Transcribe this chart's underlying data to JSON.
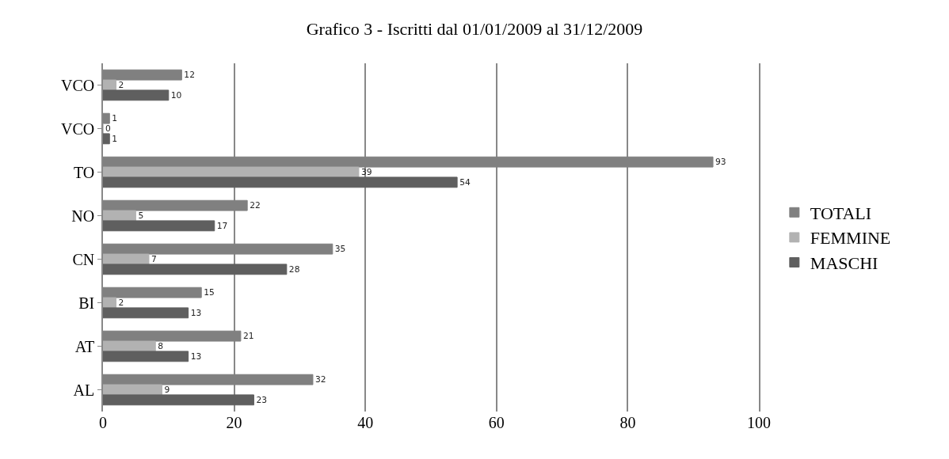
{
  "chart_data": {
    "type": "bar",
    "orientation": "horizontal",
    "title": "Grafico 3 - Iscritti dal 01/01/2009 al 31/12/2009",
    "categories": [
      "VCO",
      "VCO",
      "TO",
      "NO",
      "CN",
      "BI",
      "AT",
      "AL"
    ],
    "series": [
      {
        "name": "TOTALI",
        "color": "#808080",
        "values": [
          12,
          1,
          93,
          22,
          35,
          15,
          21,
          32
        ]
      },
      {
        "name": "FEMMINE",
        "color": "#b2b2b2",
        "values": [
          2,
          0,
          39,
          5,
          7,
          2,
          8,
          9
        ]
      },
      {
        "name": "MASCHI",
        "color": "#5f5f5f",
        "values": [
          10,
          1,
          54,
          17,
          28,
          13,
          13,
          23
        ]
      }
    ],
    "xlim": [
      0,
      100
    ],
    "xticks": [
      0,
      20,
      40,
      60,
      80,
      100
    ],
    "grid": "x",
    "legend": "right",
    "data_labels": true
  }
}
